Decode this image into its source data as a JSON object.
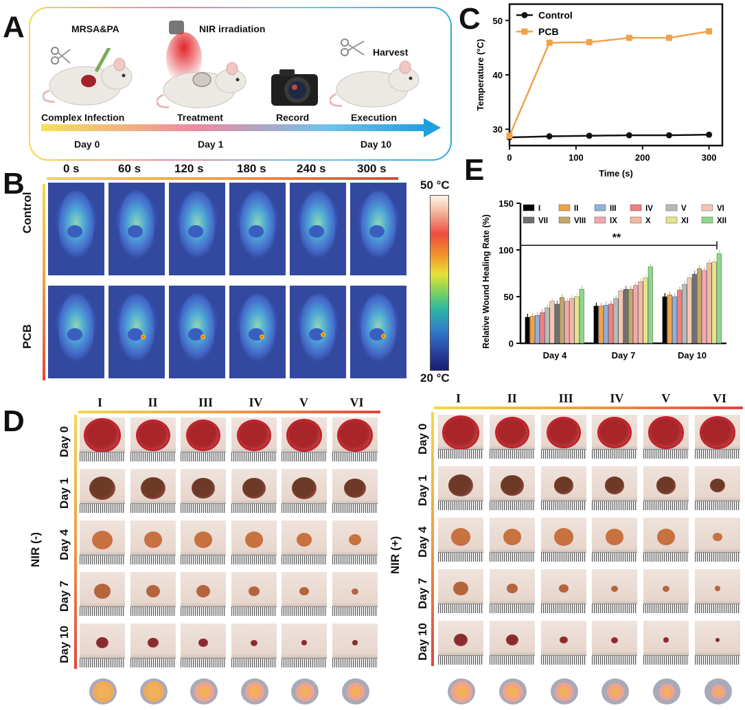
{
  "panels": {
    "a": "A",
    "b": "B",
    "c": "C",
    "d": "D",
    "e": "E"
  },
  "panel_a": {
    "steps": [
      {
        "label": "Complex Infection",
        "top": "MRSA&PA",
        "day": "Day 0"
      },
      {
        "label": "Treatment",
        "top": "NIR irradiation",
        "day": "Day 1"
      },
      {
        "label": "Record",
        "top": "",
        "day": ""
      },
      {
        "label": "Execution",
        "top": "Harvest",
        "day": "Day 10"
      }
    ]
  },
  "panel_b": {
    "times": [
      "0 s",
      "60 s",
      "120 s",
      "180 s",
      "240 s",
      "300 s"
    ],
    "rows": [
      "Control",
      "PCB"
    ],
    "colorbar_max": "50 °C",
    "colorbar_min": "20 °C",
    "colors": {
      "low": "#1a1f6e",
      "high": "#fff4e6"
    }
  },
  "panel_d": {
    "left_label": "NIR (-)",
    "right_label": "NIR (+)",
    "groups_left": [
      "I",
      "II",
      "III",
      "IV",
      "V",
      "VI"
    ],
    "groups_right": [
      "I",
      "II",
      "III",
      "IV",
      "V",
      "VI"
    ],
    "days": [
      "Day 0",
      "Day 1",
      "Day 4",
      "Day 7",
      "Day 10"
    ]
  },
  "chart_data": [
    {
      "type": "line",
      "title": "",
      "xlabel": "Time (s)",
      "ylabel": "Temperature (°C)",
      "xlim": [
        0,
        320
      ],
      "ylim": [
        27,
        53
      ],
      "xticks": [
        "0",
        "100",
        "200",
        "300"
      ],
      "yticks": [
        "30",
        "40",
        "50"
      ],
      "x": [
        0,
        60,
        120,
        180,
        240,
        300
      ],
      "series": [
        {
          "name": "Control",
          "color": "#111111",
          "values": [
            28.5,
            28.7,
            28.8,
            28.9,
            28.9,
            29.0
          ]
        },
        {
          "name": "PCB",
          "color": "#f0a24a",
          "values": [
            28.8,
            45.9,
            46.0,
            46.8,
            46.8,
            48.0
          ]
        }
      ]
    },
    {
      "type": "bar",
      "title": "",
      "xlabel": "",
      "ylabel": "Relative Wound Healing Rate (%)",
      "ylim": [
        0,
        150
      ],
      "yticks": [
        "0",
        "50",
        "100",
        "150"
      ],
      "categories": [
        "Day 4",
        "Day 7",
        "Day 10"
      ],
      "annotation": "**",
      "series": [
        {
          "name": "I",
          "color": "#000000",
          "values": [
            28,
            40,
            50
          ]
        },
        {
          "name": "II",
          "color": "#f0a24a",
          "values": [
            29,
            40,
            52
          ]
        },
        {
          "name": "III",
          "color": "#8fb1dc",
          "values": [
            30,
            41,
            50
          ]
        },
        {
          "name": "IV",
          "color": "#f08080",
          "values": [
            33,
            42,
            57
          ]
        },
        {
          "name": "V",
          "color": "#b9b9b9",
          "values": [
            38,
            48,
            63
          ]
        },
        {
          "name": "VI",
          "color": "#f3c7b0",
          "values": [
            45,
            56,
            70
          ]
        },
        {
          "name": "VII",
          "color": "#707070",
          "values": [
            42,
            58,
            74
          ]
        },
        {
          "name": "VIII",
          "color": "#c3a86a",
          "values": [
            49,
            58,
            80
          ]
        },
        {
          "name": "IX",
          "color": "#f3a8b0",
          "values": [
            45,
            62,
            78
          ]
        },
        {
          "name": "X",
          "color": "#f2b9a0",
          "values": [
            48,
            66,
            86
          ]
        },
        {
          "name": "XI",
          "color": "#e4e48c",
          "values": [
            50,
            70,
            87
          ]
        },
        {
          "name": "XII",
          "color": "#8ed88c",
          "values": [
            58,
            82,
            96
          ]
        }
      ]
    }
  ]
}
